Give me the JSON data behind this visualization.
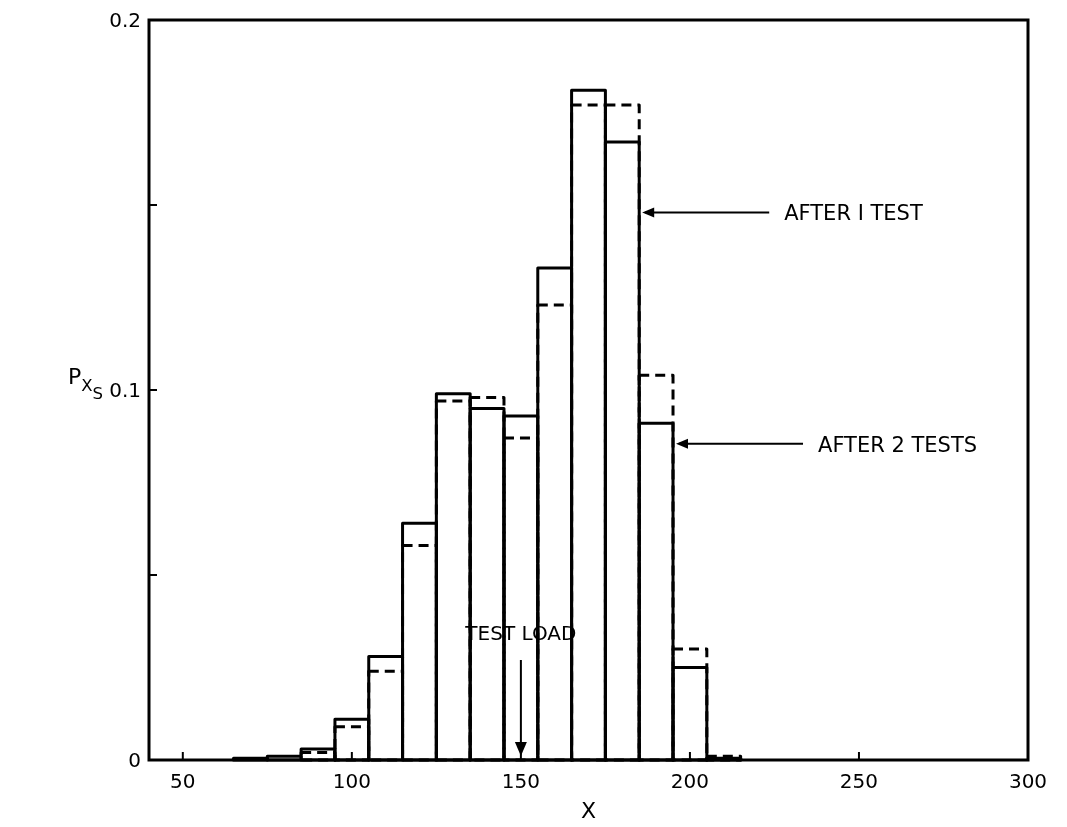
{
  "chart_data": {
    "type": "histogram",
    "xlabel": "X",
    "ylabel": "P$_{X}$$_{S}$",
    "bins": [
      65,
      75,
      85,
      95,
      105,
      115,
      125,
      135,
      145,
      155,
      165,
      175,
      185,
      195,
      205,
      215
    ],
    "series": [
      {
        "name": "AFTER I TEST",
        "color": "#000000",
        "line_style": "solid",
        "values": [
          0.0005,
          0.001,
          0.003,
          0.011,
          0.028,
          0.064,
          0.099,
          0.095,
          0.093,
          0.133,
          0.181,
          0.167,
          0.091,
          0.025,
          0.0005
        ]
      },
      {
        "name": "AFTER 2 TESTS",
        "color": "#000000",
        "line_style": "dashed",
        "values": [
          null,
          null,
          0.002,
          0.009,
          0.024,
          0.058,
          0.097,
          0.098,
          0.087,
          0.123,
          0.177,
          0.177,
          0.104,
          0.03,
          0.001
        ]
      }
    ],
    "ref_lines": [
      {
        "axis": "x",
        "value": 150,
        "label": "TEST LOAD"
      }
    ],
    "xlim": [
      40,
      300
    ],
    "xticks": [
      50,
      100,
      150,
      200,
      250,
      300
    ],
    "ylim": [
      0,
      0.2
    ],
    "yticks": [
      0,
      {
        "value": 0.05,
        "label": null
      },
      0.1,
      {
        "value": 0.15,
        "label": null
      },
      0.2
    ],
    "grid": false
  }
}
